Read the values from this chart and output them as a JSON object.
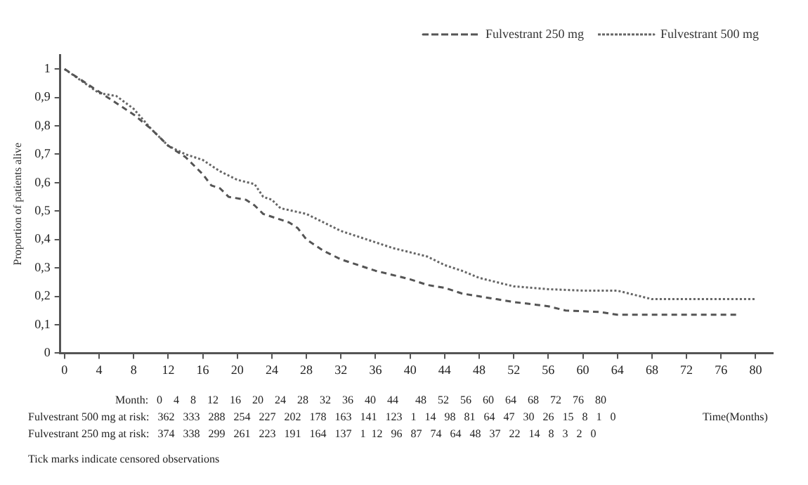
{
  "chart_data": {
    "type": "line",
    "ylabel": "Proportion of patients alive",
    "xlabel": "Time(Months)",
    "series": [
      {
        "name": "Fulvestrant 250 mg",
        "color": "#555555",
        "line_style": "dashed",
        "x": [
          0,
          2,
          4,
          6,
          8,
          10,
          12,
          14,
          16,
          17,
          18,
          19,
          21,
          22,
          23,
          26,
          27,
          28,
          30,
          32,
          34,
          36,
          40,
          42,
          44,
          46,
          48,
          50,
          52,
          56,
          58,
          62,
          64,
          78
        ],
        "values": [
          1,
          0.96,
          0.92,
          0.88,
          0.84,
          0.79,
          0.73,
          0.69,
          0.63,
          0.59,
          0.58,
          0.55,
          0.54,
          0.52,
          0.49,
          0.46,
          0.44,
          0.4,
          0.36,
          0.33,
          0.31,
          0.29,
          0.26,
          0.24,
          0.23,
          0.21,
          0.2,
          0.19,
          0.18,
          0.165,
          0.15,
          0.145,
          0.135,
          0.135
        ]
      },
      {
        "name": "Fulvestrant 500 mg",
        "color": "#666666",
        "line_style": "dotted",
        "x": [
          0,
          4,
          6,
          8,
          10,
          12,
          14,
          16,
          18,
          20,
          22,
          23,
          24,
          25,
          28,
          30,
          32,
          34,
          36,
          38,
          40,
          42,
          44,
          46,
          48,
          50,
          52,
          56,
          60,
          64,
          66,
          68,
          80
        ],
        "values": [
          1,
          0.915,
          0.905,
          0.86,
          0.79,
          0.73,
          0.7,
          0.68,
          0.64,
          0.61,
          0.595,
          0.55,
          0.54,
          0.51,
          0.49,
          0.46,
          0.43,
          0.41,
          0.39,
          0.37,
          0.355,
          0.34,
          0.31,
          0.29,
          0.265,
          0.25,
          0.235,
          0.225,
          0.22,
          0.22,
          0.205,
          0.19,
          0.19
        ]
      }
    ],
    "xlim": [
      -0.5,
      82
    ],
    "xticks": [
      0,
      4,
      8,
      12,
      16,
      20,
      24,
      28,
      32,
      36,
      40,
      44,
      48,
      52,
      56,
      60,
      64,
      68,
      72,
      76,
      80
    ],
    "ylim": [
      0,
      1.05
    ],
    "yticks": [
      0,
      {
        "value": 0.1,
        "label": "0,1"
      },
      {
        "value": 0.2,
        "label": "0,2"
      },
      {
        "value": 0.3,
        "label": "0,3"
      },
      {
        "value": 0.4,
        "label": "0,4"
      },
      {
        "value": 0.5,
        "label": "0,5"
      },
      {
        "value": 0.6,
        "label": "0,6"
      },
      {
        "value": 0.7,
        "label": "0,7"
      },
      {
        "value": 0.8,
        "label": "0,8"
      },
      {
        "value": 0.9,
        "label": "0,9"
      },
      1
    ],
    "legend": "top right",
    "grid": false,
    "annotations": [
      "Month:   0    4    8    12    16    20    24    28    32    36    40    44      48    52    56    60    64    68    72    76    80",
      "Fulvestrant 500 mg at risk:   362   333   288   254   227   202   178   163   141   123   1   14   98   81   64   47   30   26   15   8   1   0",
      "Fulvestrant 250 mg at risk:   374   338   299   261   223   191   164   137   1  12   96   87   74   64   48   37   22   14   8   3   2   0",
      "Tick marks indicate censored observations"
    ]
  }
}
